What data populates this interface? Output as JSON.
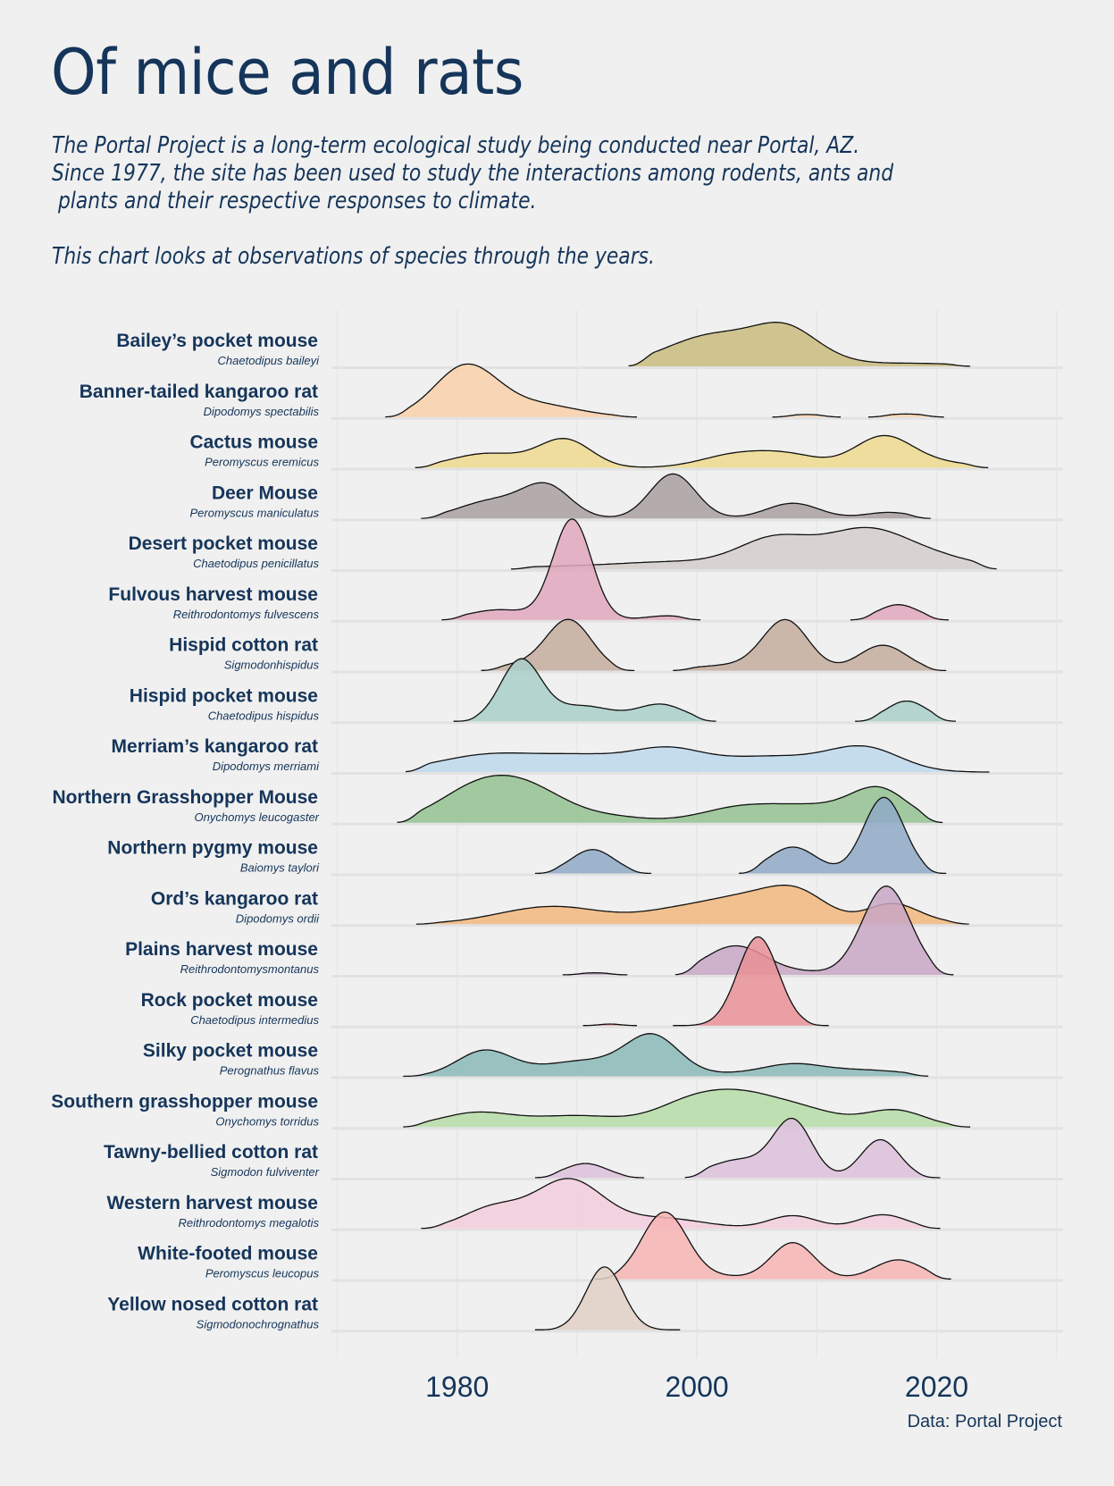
{
  "header": {
    "title": "Of mice and rats",
    "subtitle_lines": [
      "The Portal Project is a long-term ecological study being conducted near Portal, AZ.",
      "Since 1977, the site has been used to study the interactions among rodents, ants and",
      " plants and their respective responses to climate."
    ],
    "subtitle_note": "This chart looks at observations of species through the years."
  },
  "caption": "Data: Portal Project",
  "chart_data": {
    "type": "ridgeline",
    "title": "Of mice and rats",
    "xlabel": "",
    "ylabel": "",
    "xlim": [
      1968,
      2032
    ],
    "x_ticks": [
      1980,
      2000,
      2020
    ],
    "x_minor_gridlines": [
      1970,
      1990,
      2010,
      2030
    ],
    "grid": true,
    "fill_opacity": 0.7,
    "density_note": "Each series approximated as a sum of gaussian components [center_year, sigma_years, relative_height] over a support range [start_year, end_year]; relative_height is in units of row spacing.",
    "series": [
      {
        "name": "Bailey’s pocket mouse",
        "scientific": "Chaetodipus baileyi",
        "color": "#c9bb7f",
        "range": [
          1994.3,
          2022.8
        ],
        "bumps": [
          [
            2001.5,
            4.0,
            0.62
          ],
          [
            2007.5,
            2.6,
            0.62
          ],
          [
            2011.5,
            2.5,
            0.06
          ],
          [
            2018,
            4.0,
            0.06
          ]
        ],
        "segments": []
      },
      {
        "name": "Banner-tailed kangaroo rat",
        "scientific": "Dipodomys spectabilis",
        "color": "#f8d0aa",
        "range": [
          1974,
          1995
        ],
        "bumps": [
          [
            1980.7,
            2.6,
            0.98
          ],
          [
            1986.5,
            3.5,
            0.25
          ]
        ],
        "segments": [
          [
            2006.3,
            2012,
            0.05
          ],
          [
            2014.3,
            2020.6,
            0.06
          ]
        ]
      },
      {
        "name": "Cactus mouse",
        "scientific": "Peromyscus eremicus",
        "color": "#efd98e",
        "range": [
          1976.5,
          2024.3
        ],
        "bumps": [
          [
            1982.5,
            3.0,
            0.28
          ],
          [
            1989,
            2.2,
            0.55
          ],
          [
            2003.5,
            3.0,
            0.27
          ],
          [
            2008,
            2.5,
            0.2
          ],
          [
            2015.5,
            2.4,
            0.6
          ],
          [
            2020,
            3.0,
            0.1
          ]
        ],
        "segments": []
      },
      {
        "name": "Deer Mouse",
        "scientific": "Peromyscus maniculatus",
        "color": "#a9a0a0",
        "range": [
          1977,
          2019.5
        ],
        "bumps": [
          [
            1983,
            2.8,
            0.35
          ],
          [
            1987.5,
            2.0,
            0.6
          ],
          [
            1998,
            1.9,
            0.88
          ],
          [
            2008,
            2.2,
            0.3
          ],
          [
            2016,
            2.0,
            0.12
          ]
        ],
        "segments": []
      },
      {
        "name": "Desert pocket mouse",
        "scientific": "Chaetodipus penicillatus",
        "color": "#d4cdca",
        "range": [
          1984.5,
          2025
        ],
        "bumps": [
          [
            1990,
            8.0,
            0.05
          ],
          [
            1999,
            5.0,
            0.12
          ],
          [
            2006.5,
            3.0,
            0.55
          ],
          [
            2014,
            3.5,
            0.75
          ],
          [
            2020,
            3.5,
            0.2
          ]
        ],
        "segments": []
      },
      {
        "name": "Fulvous harvest mouse",
        "scientific": "Reithrodontomys fulvescens",
        "color": "#e0a7bd",
        "range": [
          1978.7,
          2000.3
        ],
        "bumps": [
          [
            1983.5,
            2.5,
            0.2
          ],
          [
            1989.6,
            1.6,
            1.98
          ],
          [
            1997.5,
            1.8,
            0.08
          ]
        ],
        "segments": [],
        "extra": [
          [
            2012.8,
            2021,
            [
              [
                2016.8,
                1.7,
                0.3
              ]
            ]
          ]
        ]
      },
      {
        "name": "Hispid cotton rat",
        "scientific": "Sigmodonhispidus",
        "color": "#c4ab9e",
        "range": [
          1982,
          1994.8
        ],
        "bumps": [
          [
            1989.3,
            1.9,
            1.0
          ],
          [
            1985,
            2.0,
            0.1
          ]
        ],
        "segments": [],
        "extra": [
          [
            1998,
            2020.8,
            [
              [
                2002.5,
                3.0,
                0.1
              ],
              [
                2007.4,
                1.9,
                0.98
              ],
              [
                2015.5,
                2.0,
                0.5
              ]
            ]
          ]
        ]
      },
      {
        "name": "Hispid pocket mouse",
        "scientific": "Chaetodipus hispidus",
        "color": "#a8cfc9",
        "range": [
          1979.7,
          2001.6
        ],
        "bumps": [
          [
            1985.3,
            1.7,
            1.2
          ],
          [
            1990.5,
            2.5,
            0.3
          ],
          [
            1997,
            2.0,
            0.33
          ]
        ],
        "segments": [],
        "extra": [
          [
            2013.2,
            2021.6,
            [
              [
                2017.5,
                1.7,
                0.4
              ]
            ]
          ]
        ]
      },
      {
        "name": "Merriam’s kangaroo rat",
        "scientific": "Dipodomys merriami",
        "color": "#bdd8ec",
        "range": [
          1975.7,
          2024.4
        ],
        "bumps": [
          [
            1983,
            4.5,
            0.35
          ],
          [
            1991,
            3.5,
            0.25
          ],
          [
            1997.5,
            3.0,
            0.4
          ],
          [
            2006,
            4.5,
            0.3
          ],
          [
            2014,
            3.0,
            0.45
          ]
        ],
        "segments": []
      },
      {
        "name": "Northern Grasshopper Mouse",
        "scientific": "Onychomys leucogaster",
        "color": "#93c18f",
        "range": [
          1975,
          2020.5
        ],
        "bumps": [
          [
            1981.5,
            3.3,
            0.6
          ],
          [
            1986,
            3.3,
            0.58
          ],
          [
            1993,
            3.0,
            0.1
          ],
          [
            2004,
            3.5,
            0.32
          ],
          [
            2010,
            3.0,
            0.25
          ],
          [
            2015.2,
            2.4,
            0.65
          ]
        ],
        "segments": []
      },
      {
        "name": "Northern pygmy mouse",
        "scientific": "Baiomys taylori",
        "color": "#8fa9c7",
        "range": [
          1986.5,
          1996.2
        ],
        "bumps": [
          [
            1991.3,
            1.8,
            0.47
          ]
        ],
        "segments": [],
        "extra": [
          [
            2003.5,
            2020.8,
            [
              [
                2008,
                2.0,
                0.52
              ],
              [
                2015.6,
                1.7,
                1.5
              ]
            ]
          ]
        ]
      },
      {
        "name": "Ord’s kangaroo rat",
        "scientific": "Dipodomys ordii",
        "color": "#f1b77c",
        "range": [
          1976.6,
          2022.7
        ],
        "bumps": [
          [
            1988,
            4.5,
            0.35
          ],
          [
            1998,
            3.0,
            0.2
          ],
          [
            2004,
            3.5,
            0.5
          ],
          [
            2008.5,
            2.5,
            0.5
          ],
          [
            2016.3,
            2.2,
            0.4
          ],
          [
            2021,
            2.5,
            0.03
          ]
        ],
        "segments": []
      },
      {
        "name": "Plains harvest mouse",
        "scientific": "Reithrodontomysmontanus",
        "color": "#c8a6c4",
        "range": [
          1998.2,
          2021.4
        ],
        "bumps": [
          [
            2003.2,
            2.5,
            0.57
          ],
          [
            2015.8,
            2.0,
            1.75
          ],
          [
            2009,
            2.5,
            0.05
          ]
        ],
        "segments": [
          [
            1988.8,
            1994.2,
            0.04
          ]
        ]
      },
      {
        "name": "Rock pocket mouse",
        "scientific": "Chaetodipus intermedius",
        "color": "#e79196",
        "range": [
          1998,
          2011
        ],
        "bumps": [
          [
            2005.1,
            1.7,
            1.75
          ]
        ],
        "segments": [
          [
            1990.5,
            1995,
            0.03
          ]
        ]
      },
      {
        "name": "Silky pocket mouse",
        "scientific": "Perognathus flavus",
        "color": "#89b8b6",
        "range": [
          1975.5,
          2019.3
        ],
        "bumps": [
          [
            1982.3,
            2.3,
            0.5
          ],
          [
            1990.5,
            3.5,
            0.3
          ],
          [
            1996.3,
            2.2,
            0.75
          ],
          [
            2003,
            4.0,
            0.05
          ],
          [
            2008,
            2.5,
            0.2
          ],
          [
            2014,
            3.5,
            0.12
          ]
        ],
        "segments": []
      },
      {
        "name": "Southern grasshopper mouse",
        "scientific": "Onychomys torridus",
        "color": "#b5dca6",
        "range": [
          1975.5,
          2022.8
        ],
        "bumps": [
          [
            1981.5,
            3.0,
            0.27
          ],
          [
            1990,
            4.0,
            0.22
          ],
          [
            1999.5,
            3.0,
            0.45
          ],
          [
            2004,
            3.0,
            0.5
          ],
          [
            2009,
            3.0,
            0.3
          ],
          [
            2016.5,
            2.5,
            0.33
          ]
        ],
        "segments": []
      },
      {
        "name": "Tawny-bellied cotton rat",
        "scientific": "Sigmodon fulviventer",
        "color": "#dcc0da",
        "range": [
          1999,
          2020.3
        ],
        "bumps": [
          [
            2003.5,
            2.5,
            0.35
          ],
          [
            2008,
            1.6,
            1.1
          ],
          [
            2015.3,
            1.6,
            0.75
          ]
        ],
        "segments": [],
        "extra": [
          [
            1986.5,
            1995.6,
            [
              [
                1990.7,
                1.8,
                0.28
              ]
            ]
          ]
        ]
      },
      {
        "name": "Western harvest mouse",
        "scientific": "Reithrodontomys megalotis",
        "color": "#f3cddd",
        "range": [
          1977,
          2020.3
        ],
        "bumps": [
          [
            1983,
            2.5,
            0.4
          ],
          [
            1989.3,
            2.8,
            0.95
          ],
          [
            1997,
            3.5,
            0.2
          ],
          [
            2008,
            2.0,
            0.25
          ],
          [
            2015.5,
            2.0,
            0.27
          ]
        ],
        "segments": []
      },
      {
        "name": "White-footed mouse",
        "scientific": "Peromyscus leucopus",
        "color": "#f7b4b4",
        "range": [
          1991.5,
          2021.2
        ],
        "bumps": [
          [
            1997.3,
            1.9,
            1.32
          ],
          [
            2008,
            1.8,
            0.72
          ],
          [
            2016.8,
            2.0,
            0.38
          ],
          [
            2002,
            2.0,
            0.05
          ]
        ],
        "segments": []
      },
      {
        "name": "Yellow nosed cotton rat",
        "scientific": "Sigmodonochrognathus",
        "color": "#e1d0c5",
        "range": [
          1986.5,
          1998.6
        ],
        "bumps": [
          [
            1992.3,
            1.55,
            1.24
          ]
        ],
        "segments": []
      }
    ]
  }
}
